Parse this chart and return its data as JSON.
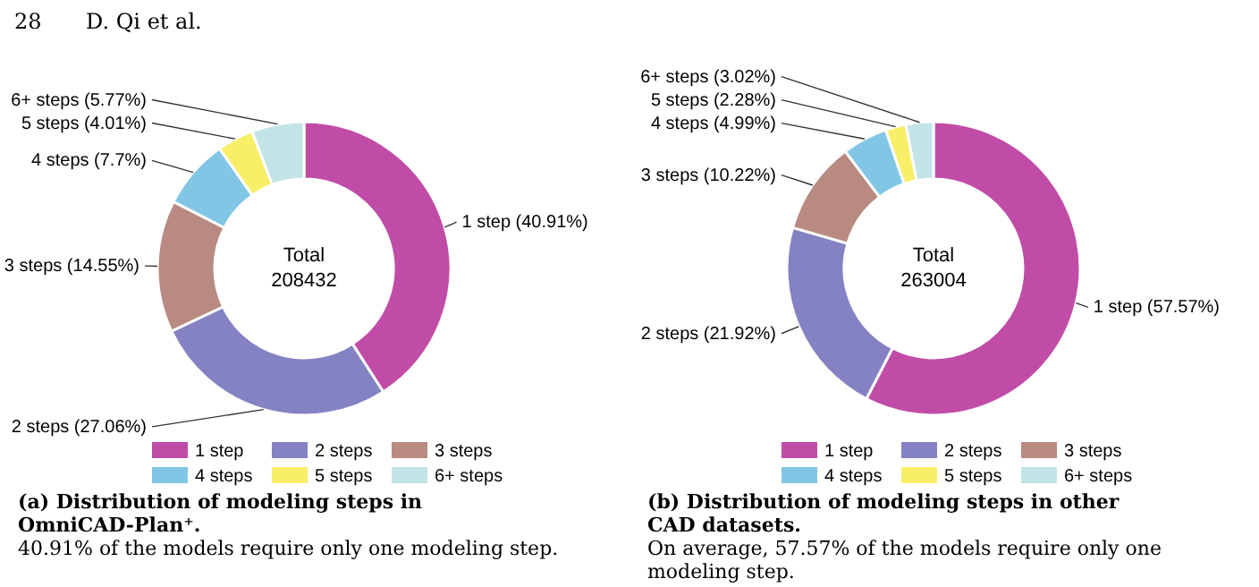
{
  "chart_data": [
    {
      "type": "donut",
      "title": "(a) Distribution of modeling steps in OmniCAD-Plan⁺.",
      "subtitle": "40.91% of the models require only one modeling step.",
      "categories": [
        "1 step",
        "2 steps",
        "3 steps",
        "4 steps",
        "5 steps",
        "6+ steps"
      ],
      "values": [
        40.91,
        27.06,
        14.55,
        7.7,
        4.01,
        5.77
      ],
      "colors": [
        "#c04ca8",
        "#8482c2",
        "#b88a82",
        "#82c6e6",
        "#f8ee68",
        "#c2e4e6"
      ],
      "value_labels": [
        "1 step (40.91%)",
        "2 steps (27.06%)",
        "3 steps (14.55%)",
        "4 steps (7.7%)",
        "5 steps (4.01%)",
        "6+ steps (5.77%)"
      ],
      "legend": "bottom",
      "annotations": [
        "28",
        "D. Qi et al.",
        "Total",
        "208432"
      ]
    },
    {
      "type": "donut",
      "title": "(b) Distribution of modeling steps in other CAD datasets.",
      "subtitle": "On average, 57.57% of the models require only one modeling step.",
      "categories": [
        "1 step",
        "2 steps",
        "3 steps",
        "4 steps",
        "5 steps",
        "6+ steps"
      ],
      "values": [
        57.57,
        21.92,
        10.22,
        4.99,
        2.28,
        3.02
      ],
      "colors": [
        "#c04ca8",
        "#8482c2",
        "#b88a82",
        "#82c6e6",
        "#f8ee68",
        "#c2e4e6"
      ],
      "value_labels": [
        "1 step (57.57%)",
        "2 steps (21.92%)",
        "3 steps (10.22%)",
        "4 steps (4.99%)",
        "5 steps (2.28%)",
        "6+ steps (3.02%)"
      ],
      "legend": "bottom",
      "annotations": [
        "Total",
        "263004"
      ]
    }
  ]
}
